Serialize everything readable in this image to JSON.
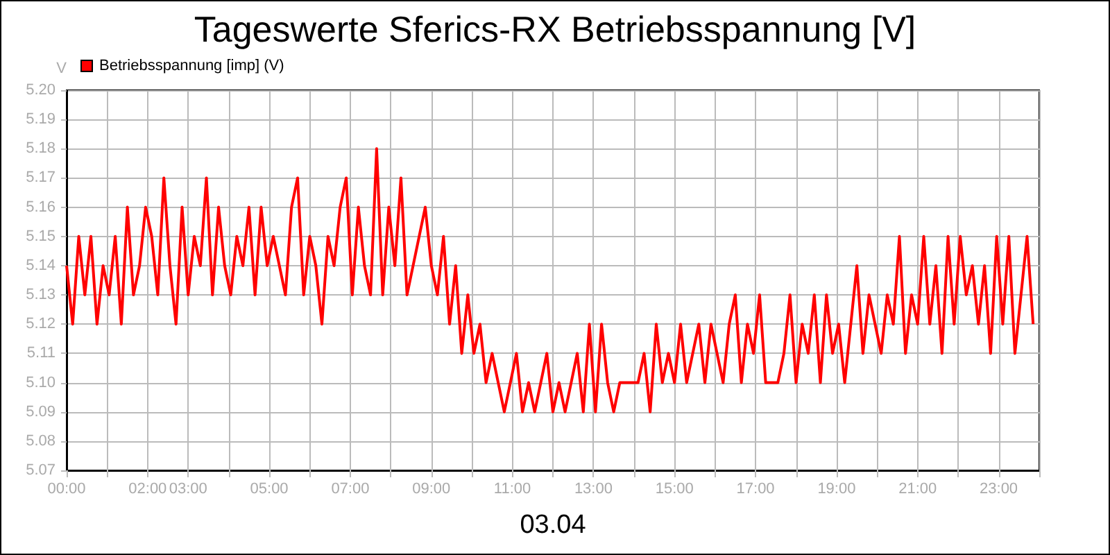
{
  "chart_data": {
    "type": "line",
    "title": "Tageswerte Sferics-RX Betriebsspannung [V]",
    "xlabel": "03.04",
    "ylabel": "V",
    "x": [
      0,
      0.15,
      0.3,
      0.45,
      0.6,
      0.75,
      0.9,
      1.05,
      1.2,
      1.35,
      1.5,
      1.65,
      1.8,
      1.95,
      2.1,
      2.25,
      2.4,
      2.55,
      2.7,
      2.85,
      3,
      3.15,
      3.3,
      3.45,
      3.6,
      3.75,
      3.9,
      4.05,
      4.2,
      4.35,
      4.5,
      4.65,
      4.8,
      4.95,
      5.1,
      5.25,
      5.4,
      5.55,
      5.7,
      5.85,
      6,
      6.15,
      6.3,
      6.45,
      6.6,
      6.75,
      6.9,
      7.05,
      7.2,
      7.35,
      7.5,
      7.65,
      7.8,
      7.95,
      8.1,
      8.25,
      8.4,
      8.55,
      8.7,
      8.85,
      9,
      9.15,
      9.3,
      9.45,
      9.6,
      9.75,
      9.9,
      10.05,
      10.2,
      10.35,
      10.5,
      10.65,
      10.8,
      10.95,
      11.1,
      11.25,
      11.4,
      11.55,
      11.7,
      11.85,
      12,
      12.15,
      12.3,
      12.45,
      12.6,
      12.75,
      12.9,
      13.05,
      13.2,
      13.35,
      13.5,
      13.65,
      13.8,
      13.95,
      14.1,
      14.25,
      14.4,
      14.55,
      14.7,
      14.85,
      15,
      15.15,
      15.3,
      15.45,
      15.6,
      15.75,
      15.9,
      16.05,
      16.2,
      16.35,
      16.5,
      16.65,
      16.8,
      16.95,
      17.1,
      17.25,
      17.4,
      17.55,
      17.7,
      17.85,
      18,
      18.15,
      18.3,
      18.45,
      18.6,
      18.75,
      18.9,
      19.05,
      19.2,
      19.35,
      19.5,
      19.65,
      19.8,
      19.95,
      20.1,
      20.25,
      20.4,
      20.55,
      20.7,
      20.85,
      21,
      21.15,
      21.3,
      21.45,
      21.6,
      21.75,
      21.9,
      22.05,
      22.2,
      22.35,
      22.5,
      22.65,
      22.8,
      22.95,
      23.1,
      23.25,
      23.4,
      23.55,
      23.7,
      23.85
    ],
    "series": [
      {
        "name": "Betriebsspannung [imp] (V)",
        "color": "#ff0000",
        "values": [
          5.14,
          5.12,
          5.15,
          5.13,
          5.15,
          5.12,
          5.14,
          5.13,
          5.15,
          5.12,
          5.16,
          5.13,
          5.14,
          5.16,
          5.15,
          5.13,
          5.17,
          5.14,
          5.12,
          5.16,
          5.13,
          5.15,
          5.14,
          5.17,
          5.13,
          5.16,
          5.14,
          5.13,
          5.15,
          5.14,
          5.16,
          5.13,
          5.16,
          5.14,
          5.15,
          5.14,
          5.13,
          5.16,
          5.17,
          5.13,
          5.15,
          5.14,
          5.12,
          5.15,
          5.14,
          5.16,
          5.17,
          5.13,
          5.16,
          5.14,
          5.13,
          5.18,
          5.13,
          5.16,
          5.14,
          5.17,
          5.13,
          5.14,
          5.15,
          5.16,
          5.14,
          5.13,
          5.15,
          5.12,
          5.14,
          5.11,
          5.13,
          5.11,
          5.12,
          5.1,
          5.11,
          5.1,
          5.09,
          5.1,
          5.11,
          5.09,
          5.1,
          5.09,
          5.1,
          5.11,
          5.09,
          5.1,
          5.09,
          5.1,
          5.11,
          5.09,
          5.12,
          5.09,
          5.12,
          5.1,
          5.09,
          5.1,
          5.1,
          5.1,
          5.1,
          5.11,
          5.09,
          5.12,
          5.1,
          5.11,
          5.1,
          5.12,
          5.1,
          5.11,
          5.12,
          5.1,
          5.12,
          5.11,
          5.1,
          5.12,
          5.13,
          5.1,
          5.12,
          5.11,
          5.13,
          5.1,
          5.1,
          5.1,
          5.11,
          5.13,
          5.1,
          5.12,
          5.11,
          5.13,
          5.1,
          5.13,
          5.11,
          5.12,
          5.1,
          5.12,
          5.14,
          5.11,
          5.13,
          5.12,
          5.11,
          5.13,
          5.12,
          5.15,
          5.11,
          5.13,
          5.12,
          5.15,
          5.12,
          5.14,
          5.11,
          5.15,
          5.12,
          5.15,
          5.13,
          5.14,
          5.12,
          5.14,
          5.11,
          5.15,
          5.12,
          5.15,
          5.11,
          5.13,
          5.15,
          5.12
        ]
      }
    ],
    "xlim": [
      0,
      24
    ],
    "xticks": [
      {
        "value": 0,
        "label": "00:00"
      },
      {
        "value": 1,
        "label": null
      },
      {
        "value": 2,
        "label": "02:00"
      },
      {
        "value": 3,
        "label": "03:00"
      },
      {
        "value": 4,
        "label": null
      },
      {
        "value": 5,
        "label": "05:00"
      },
      {
        "value": 6,
        "label": null
      },
      {
        "value": 7,
        "label": "07:00"
      },
      {
        "value": 8,
        "label": null
      },
      {
        "value": 9,
        "label": "09:00"
      },
      {
        "value": 10,
        "label": null
      },
      {
        "value": 11,
        "label": "11:00"
      },
      {
        "value": 12,
        "label": null
      },
      {
        "value": 13,
        "label": "13:00"
      },
      {
        "value": 14,
        "label": null
      },
      {
        "value": 15,
        "label": "15:00"
      },
      {
        "value": 16,
        "label": null
      },
      {
        "value": 17,
        "label": "17:00"
      },
      {
        "value": 18,
        "label": null
      },
      {
        "value": 19,
        "label": "19:00"
      },
      {
        "value": 20,
        "label": null
      },
      {
        "value": 21,
        "label": "21:00"
      },
      {
        "value": 22,
        "label": null
      },
      {
        "value": 23,
        "label": "23:00"
      },
      {
        "value": 24,
        "label": null
      }
    ],
    "ylim": [
      5.07,
      5.2
    ],
    "yticks": [
      5.07,
      5.08,
      5.09,
      {
        "value": 5.1,
        "label": "5.10"
      },
      5.11,
      5.12,
      5.13,
      5.14,
      5.15,
      5.16,
      5.17,
      5.18,
      5.19,
      {
        "value": 5.2,
        "label": "5.20"
      }
    ],
    "grid": true,
    "legend": "top left",
    "marker": "none",
    "line_style": "solid"
  }
}
